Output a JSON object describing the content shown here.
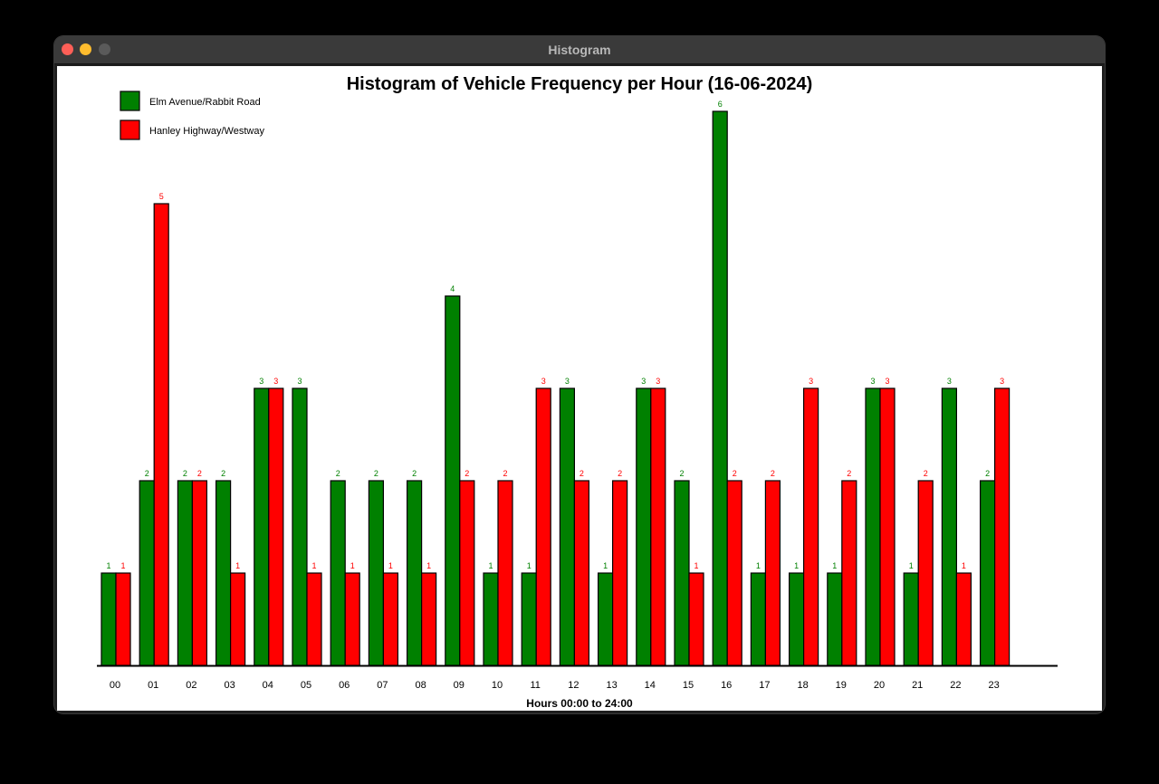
{
  "window": {
    "title": "Histogram"
  },
  "colors": {
    "series_a": "#008000",
    "series_b": "#ff0000",
    "axis": "#000000"
  },
  "chart_data": {
    "type": "bar",
    "title": "Histogram of Vehicle Frequency per Hour (16-06-2024)",
    "xlabel": "Hours 00:00 to 24:00",
    "ylabel": "",
    "ylim": [
      0,
      6
    ],
    "grid": false,
    "legend_position": "top-left",
    "categories": [
      "00",
      "01",
      "02",
      "03",
      "04",
      "05",
      "06",
      "07",
      "08",
      "09",
      "10",
      "11",
      "12",
      "13",
      "14",
      "15",
      "16",
      "17",
      "18",
      "19",
      "20",
      "21",
      "22",
      "23"
    ],
    "series": [
      {
        "name": "Elm Avenue/Rabbit Road",
        "color": "#008000",
        "values": [
          1,
          2,
          2,
          2,
          3,
          3,
          2,
          2,
          2,
          4,
          1,
          1,
          3,
          1,
          3,
          2,
          6,
          1,
          1,
          1,
          3,
          1,
          3,
          2
        ]
      },
      {
        "name": "Hanley Highway/Westway",
        "color": "#ff0000",
        "values": [
          1,
          5,
          2,
          1,
          3,
          1,
          1,
          1,
          1,
          2,
          2,
          3,
          2,
          2,
          3,
          1,
          2,
          2,
          3,
          2,
          3,
          2,
          1,
          3
        ]
      }
    ]
  }
}
